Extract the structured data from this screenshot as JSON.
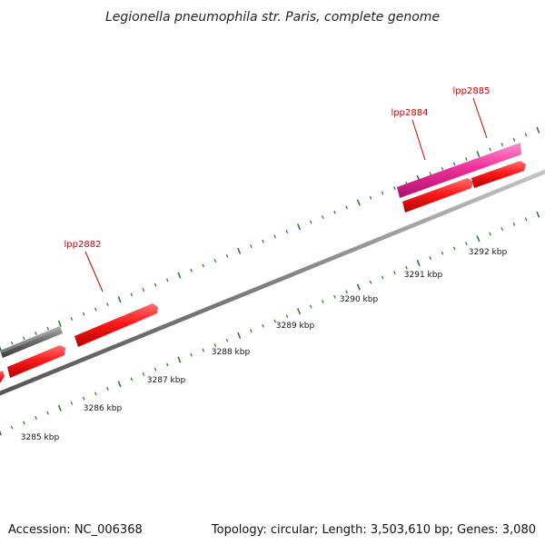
{
  "title": "Legionella pneumophila str. Paris, complete genome",
  "footer": {
    "accession": "Accession: NC_006368",
    "summary": "Topology: circular; Length: 3,503,610 bp; Genes: 3,080"
  },
  "colors": {
    "background": "#ffffff",
    "backbone": "#8c8c8c",
    "tick": "#2e7d32",
    "gene_forward": "#ff1a1a",
    "gene_grey": "#707070",
    "gene_pink": "#f0309a",
    "label": "#cc0000"
  },
  "scale_labels": [
    "3285 kbp",
    "3286 kbp",
    "3287 kbp",
    "3288 kbp",
    "3289 kbp",
    "3290 kbp",
    "3291 kbp",
    "3292 kbp"
  ],
  "gene_labels": [
    {
      "name": "lpp2882"
    },
    {
      "name": "lpp2884"
    },
    {
      "name": "lpp2885"
    }
  ]
}
